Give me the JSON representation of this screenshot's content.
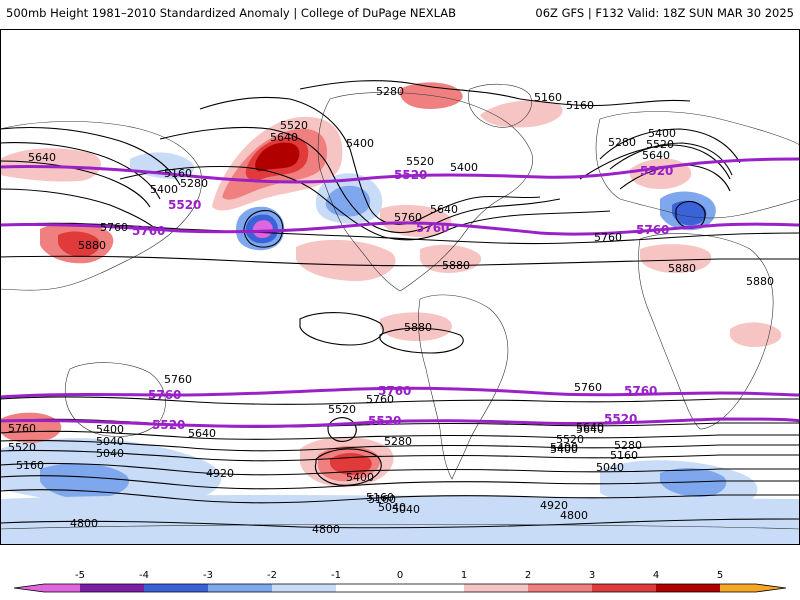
{
  "header": {
    "left": "500mb Height 1981–2010 Standardized Anomaly | College of DuPage NEXLAB",
    "right": "06Z GFS | F132 Valid: 18Z SUN MAR 30 2025"
  },
  "colors": {
    "pos1": "#f7c4c4",
    "pos2": "#f08080",
    "pos3": "#e03a3a",
    "pos4": "#b00000",
    "pos5": "#f5a623",
    "neg1": "#c9dcf7",
    "neg2": "#7fa7ee",
    "neg3": "#3a63d8",
    "neg4": "#7a1fa8",
    "neg5": "#e066e0",
    "accent_contour": "#9a20c8"
  },
  "height_labels": [
    {
      "text": "5280"
    },
    {
      "text": "5160"
    },
    {
      "text": "5160"
    },
    {
      "text": "5520"
    },
    {
      "text": "5640"
    },
    {
      "text": "5400"
    },
    {
      "text": "5640"
    },
    {
      "text": "5160"
    },
    {
      "text": "5400"
    },
    {
      "text": "5280"
    },
    {
      "text": "5520"
    },
    {
      "text": "5400"
    },
    {
      "text": "5640"
    },
    {
      "text": "5760"
    },
    {
      "text": "5760"
    },
    {
      "text": "5880"
    },
    {
      "text": "5880"
    },
    {
      "text": "5400"
    },
    {
      "text": "5520"
    },
    {
      "text": "5280"
    },
    {
      "text": "5640"
    },
    {
      "text": "5760"
    },
    {
      "text": "5880"
    },
    {
      "text": "5880"
    },
    {
      "text": "5880"
    },
    {
      "text": "5760"
    },
    {
      "text": "5760"
    },
    {
      "text": "5520"
    },
    {
      "text": "5640"
    },
    {
      "text": "5280"
    },
    {
      "text": "5040"
    },
    {
      "text": "5400"
    },
    {
      "text": "4920"
    },
    {
      "text": "5400"
    },
    {
      "text": "5160"
    },
    {
      "text": "5040"
    },
    {
      "text": "4920"
    },
    {
      "text": "4800"
    },
    {
      "text": "4800"
    },
    {
      "text": "4800"
    },
    {
      "text": "5760"
    },
    {
      "text": "5520"
    },
    {
      "text": "5160"
    },
    {
      "text": "5640"
    },
    {
      "text": "5400"
    },
    {
      "text": "5040"
    },
    {
      "text": "5280"
    },
    {
      "text": "5160"
    },
    {
      "text": "5040"
    },
    {
      "text": "5760"
    },
    {
      "text": "5640"
    },
    {
      "text": "5520"
    },
    {
      "text": "5400"
    },
    {
      "text": "5160"
    },
    {
      "text": "5040"
    }
  ],
  "highlight_labels": [
    {
      "text": "5520"
    },
    {
      "text": "5520"
    },
    {
      "text": "5520"
    },
    {
      "text": "5760"
    },
    {
      "text": "5760"
    },
    {
      "text": "5760"
    },
    {
      "text": "5760"
    },
    {
      "text": "5760"
    },
    {
      "text": "5760"
    },
    {
      "text": "5520"
    },
    {
      "text": "5520"
    },
    {
      "text": "5520"
    }
  ],
  "legend": {
    "ticks": [
      "-5",
      "-4",
      "-3",
      "-2",
      "-1",
      "0",
      "1",
      "2",
      "3",
      "4",
      "5"
    ]
  }
}
